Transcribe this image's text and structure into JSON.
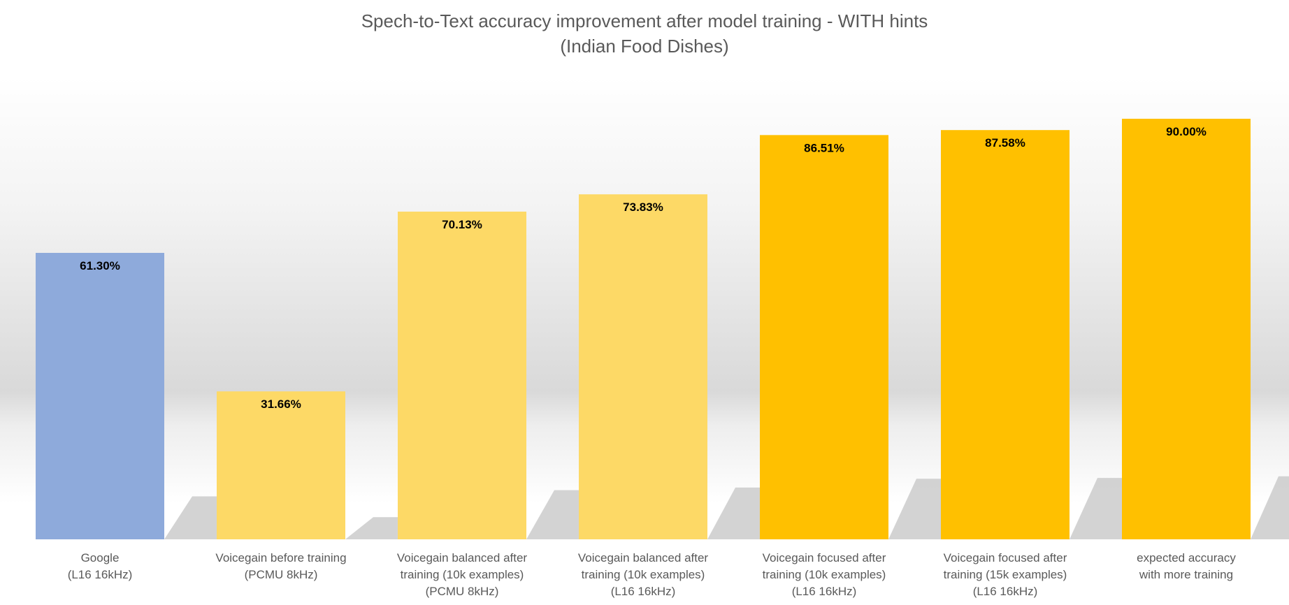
{
  "chart_data": {
    "type": "bar",
    "title": "Spech-to-Text accuracy improvement after model training - WITH hints",
    "subtitle": "(Indian Food Dishes)",
    "xlabel": "",
    "ylabel": "",
    "ylim": [
      0,
      90
    ],
    "grid": false,
    "legend": "none",
    "value_format": "percent_2dp",
    "categories": [
      [
        "Google",
        "(L16 16kHz)"
      ],
      [
        "Voicegain before training",
        "(PCMU 8kHz)"
      ],
      [
        "Voicegain balanced after",
        "training (10k examples)",
        "(PCMU 8kHz)"
      ],
      [
        "Voicegain balanced after",
        "training (10k examples)",
        "(L16 16kHz)"
      ],
      [
        "Voicegain focused after",
        "training (10k examples)",
        "(L16 16kHz)"
      ],
      [
        "Voicegain focused after",
        "training (15k examples)",
        "(L16 16kHz)"
      ],
      [
        "expected accuracy",
        "with more training"
      ]
    ],
    "values": [
      61.3,
      31.66,
      70.13,
      73.83,
      86.51,
      87.58,
      90.0
    ],
    "data_labels": [
      "61.30%",
      "31.66%",
      "70.13%",
      "73.83%",
      "86.51%",
      "87.58%",
      "90.00%"
    ],
    "colors": [
      "#8eaadb",
      "#fdd966",
      "#fdd966",
      "#fdd966",
      "#ffc000",
      "#ffc000",
      "#ffc000"
    ]
  }
}
